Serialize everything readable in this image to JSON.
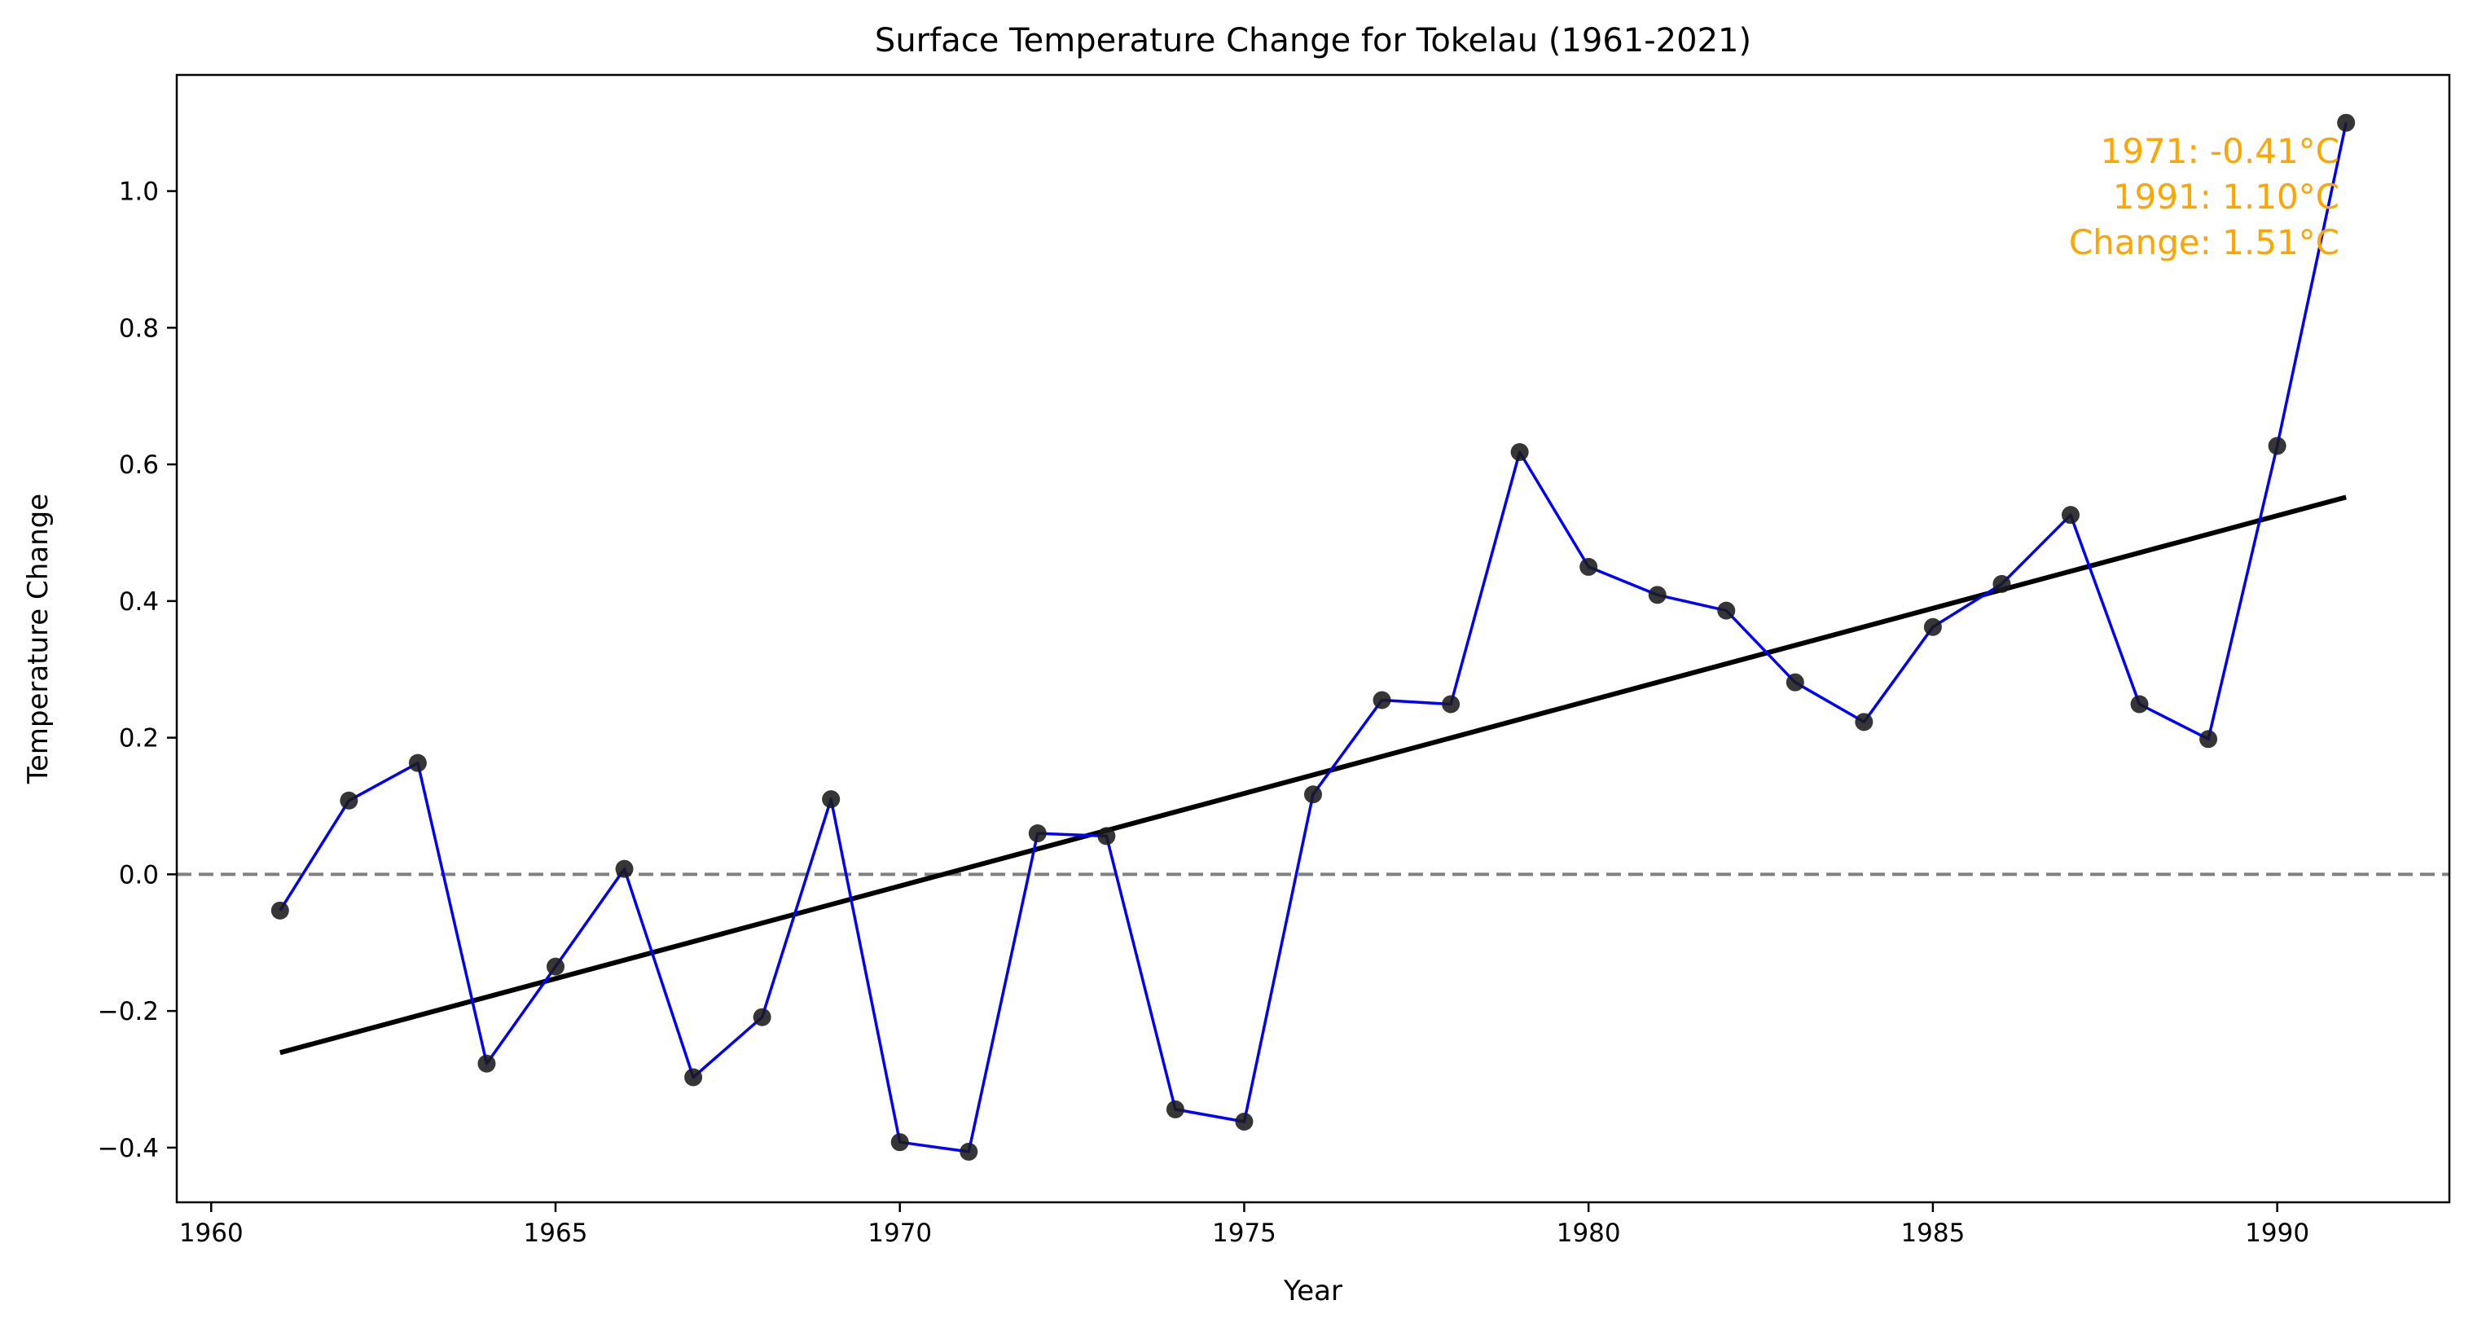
{
  "chart_data": {
    "type": "line",
    "title": "Surface Temperature Change for Tokelau (1961-2021)",
    "xlabel": "Year",
    "ylabel": "Temperature Change",
    "xlim": [
      1959.5,
      1992.5
    ],
    "ylim": [
      -0.48,
      1.17
    ],
    "xticks": [
      1960,
      1965,
      1970,
      1975,
      1980,
      1985,
      1990
    ],
    "yticks": [
      -0.4,
      -0.2,
      0.0,
      0.2,
      0.4,
      0.6,
      0.8,
      1.0
    ],
    "ytick_labels": [
      "−0.4",
      "−0.2",
      "0.0",
      "0.2",
      "0.4",
      "0.6",
      "0.8",
      "1.0"
    ],
    "grid": false,
    "series": [
      {
        "x": [
          1961,
          1962,
          1963,
          1964,
          1965,
          1966,
          1967,
          1968,
          1969,
          1970,
          1971,
          1972,
          1973,
          1974,
          1975,
          1976,
          1977,
          1978,
          1979,
          1980,
          1981,
          1982,
          1983,
          1984,
          1985,
          1986,
          1987,
          1988,
          1989,
          1990,
          1991
        ],
        "values": [
          -0.053,
          0.108,
          0.163,
          -0.277,
          -0.135,
          0.008,
          -0.297,
          -0.209,
          0.11,
          -0.392,
          -0.406,
          0.06,
          0.056,
          -0.344,
          -0.362,
          0.117,
          0.255,
          0.249,
          0.618,
          0.45,
          0.409,
          0.386,
          0.281,
          0.223,
          0.362,
          0.425,
          0.526,
          0.249,
          0.198,
          0.627,
          1.1
        ],
        "line_color": "#0000ff",
        "marker_color": "#1a1a1a"
      }
    ],
    "trendline": {
      "x": [
        1961,
        1991
      ],
      "y": [
        -0.261,
        0.552
      ],
      "color": "#000000"
    },
    "reference_line": {
      "y": 0.0,
      "color": "#808080",
      "style": "dashed"
    },
    "annotation": {
      "lines": [
        "1971: -0.41°C",
        "1991: 1.10°C",
        "Change: 1.51°C"
      ],
      "color": "#ffa500",
      "placement": "top-right"
    }
  }
}
